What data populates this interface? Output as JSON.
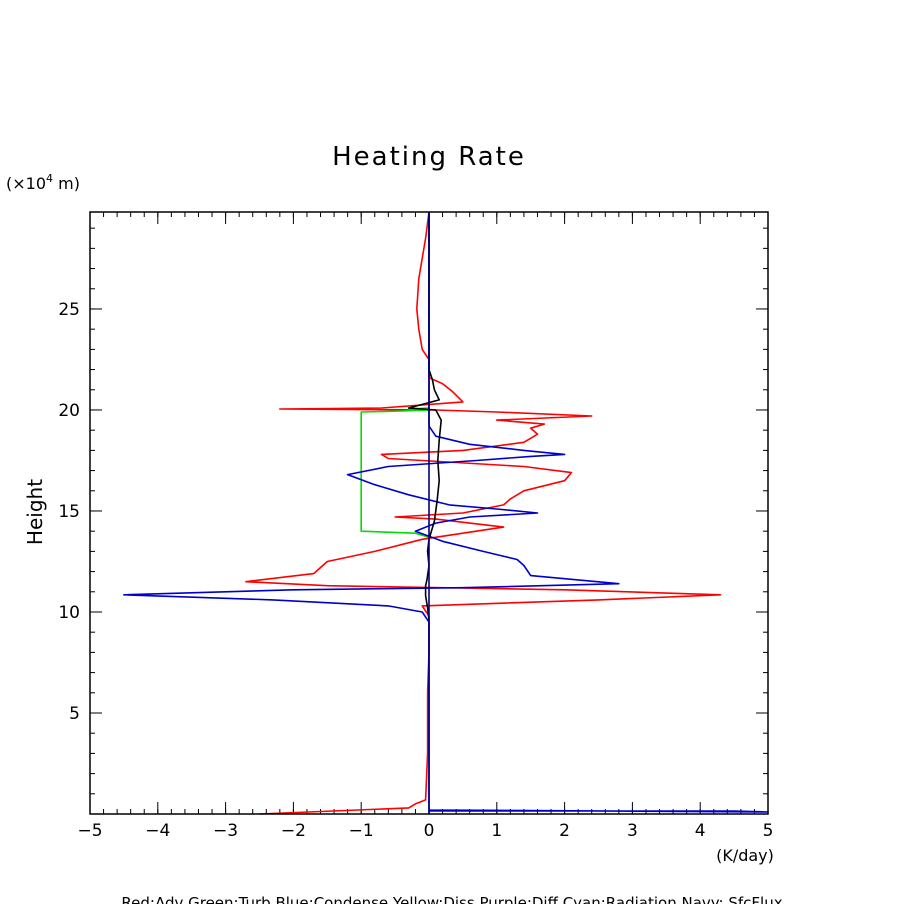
{
  "chart_data": {
    "type": "line",
    "title": "Heating Rate",
    "xlabel": "",
    "ylabel": "Height",
    "x_unit": "(K/day)",
    "y_unit_prefix": "(×10",
    "y_unit_exp": "4",
    "y_unit_suffix": " m)",
    "xlim": [
      -5,
      5
    ],
    "ylim": [
      0,
      29.8
    ],
    "x_ticks": [
      -5,
      -4,
      -3,
      -2,
      -1,
      0,
      1,
      2,
      3,
      4,
      5
    ],
    "y_ticks": [
      5,
      10,
      15,
      20,
      25
    ],
    "footer": "Red:Adv  Green:Turb  Blue:Condense  Yellow:Diss  Purple:Diff  Cyan:Radiation  Navy: SfcFlux",
    "series": [
      {
        "color": "#ff0000",
        "points": [
          [
            -2.5,
            0
          ],
          [
            -0.3,
            0.3
          ],
          [
            -0.2,
            0.5
          ],
          [
            -0.05,
            0.7
          ],
          [
            -0.02,
            3
          ],
          [
            -0.02,
            6
          ],
          [
            0,
            8
          ],
          [
            0,
            9.8
          ],
          [
            -0.1,
            10.3
          ],
          [
            2.5,
            10.6
          ],
          [
            4.3,
            10.85
          ],
          [
            2.0,
            11.1
          ],
          [
            -1.5,
            11.3
          ],
          [
            -2.7,
            11.5
          ],
          [
            -1.7,
            11.9
          ],
          [
            -1.5,
            12.5
          ],
          [
            -0.8,
            13.0
          ],
          [
            -0.1,
            13.6
          ],
          [
            0.5,
            13.9
          ],
          [
            1.1,
            14.2
          ],
          [
            0.1,
            14.6
          ],
          [
            -0.5,
            14.7
          ],
          [
            0.5,
            14.9
          ],
          [
            1.1,
            15.3
          ],
          [
            1.2,
            15.6
          ],
          [
            1.4,
            16.0
          ],
          [
            2.0,
            16.5
          ],
          [
            2.1,
            16.9
          ],
          [
            1.4,
            17.2
          ],
          [
            0.4,
            17.4
          ],
          [
            -0.6,
            17.6
          ],
          [
            -0.7,
            17.8
          ],
          [
            0.5,
            18.0
          ],
          [
            1.4,
            18.4
          ],
          [
            1.6,
            18.8
          ],
          [
            1.5,
            19.1
          ],
          [
            1.7,
            19.3
          ],
          [
            1.0,
            19.5
          ],
          [
            2.4,
            19.7
          ],
          [
            1.0,
            19.9
          ],
          [
            0.1,
            20.0
          ],
          [
            -2.2,
            20.05
          ],
          [
            -0.7,
            20.1
          ],
          [
            0.5,
            20.4
          ],
          [
            0.35,
            20.9
          ],
          [
            0.2,
            21.3
          ],
          [
            0.0,
            21.6
          ],
          [
            0,
            22.5
          ],
          [
            -0.1,
            23.0
          ],
          [
            -0.15,
            24
          ],
          [
            -0.18,
            25
          ],
          [
            -0.15,
            26.5
          ],
          [
            -0.1,
            27.5
          ],
          [
            -0.05,
            28.5
          ],
          [
            0,
            29.8
          ]
        ]
      },
      {
        "color": "#00dd00",
        "points": [
          [
            0,
            13.7
          ],
          [
            -0.2,
            13.9
          ],
          [
            -1.0,
            14.0
          ],
          [
            -1.0,
            17.0
          ],
          [
            -1.0,
            19.9
          ],
          [
            -0.4,
            19.95
          ],
          [
            0,
            20.0
          ],
          [
            -0.3,
            20.05
          ],
          [
            0,
            20.1
          ]
        ]
      },
      {
        "color": "#0000cc",
        "points": [
          [
            0,
            0
          ],
          [
            0,
            0.15
          ],
          [
            4.5,
            0.15
          ],
          [
            5,
            0.1
          ],
          [
            0,
            0.2
          ],
          [
            0,
            9.5
          ],
          [
            -0.1,
            10.0
          ],
          [
            -0.6,
            10.3
          ],
          [
            -2.3,
            10.6
          ],
          [
            -4.5,
            10.85
          ],
          [
            -2.0,
            11.1
          ],
          [
            0.5,
            11.2
          ],
          [
            2.8,
            11.4
          ],
          [
            1.5,
            11.8
          ],
          [
            1.4,
            12.3
          ],
          [
            1.3,
            12.6
          ],
          [
            0.8,
            13.0
          ],
          [
            0.2,
            13.5
          ],
          [
            -0.2,
            14.0
          ],
          [
            0.1,
            14.4
          ],
          [
            0.6,
            14.7
          ],
          [
            1.6,
            14.9
          ],
          [
            1.0,
            15.1
          ],
          [
            0.3,
            15.3
          ],
          [
            -0.3,
            15.8
          ],
          [
            -0.8,
            16.3
          ],
          [
            -1.2,
            16.8
          ],
          [
            -0.6,
            17.2
          ],
          [
            0.7,
            17.5
          ],
          [
            1.5,
            17.7
          ],
          [
            2.0,
            17.8
          ],
          [
            1.4,
            18.0
          ],
          [
            0.6,
            18.3
          ],
          [
            0.1,
            18.7
          ],
          [
            0,
            19.2
          ],
          [
            0,
            29.8
          ]
        ]
      },
      {
        "color": "#000000",
        "points": [
          [
            0,
            9.6
          ],
          [
            -0.02,
            10.2
          ],
          [
            -0.05,
            10.8
          ],
          [
            -0.05,
            11.3
          ],
          [
            -0.03,
            11.6
          ],
          [
            0,
            12.3
          ],
          [
            -0.02,
            13.0
          ],
          [
            0,
            13.6
          ],
          [
            0.08,
            14.5
          ],
          [
            0.12,
            15.5
          ],
          [
            0.15,
            16.5
          ],
          [
            0.13,
            17.5
          ],
          [
            0.15,
            18.5
          ],
          [
            0.18,
            19.5
          ],
          [
            0.1,
            20.0
          ],
          [
            -0.3,
            20.1
          ],
          [
            0.15,
            20.5
          ],
          [
            0.08,
            21.0
          ],
          [
            0.05,
            21.5
          ],
          [
            0,
            22.0
          ],
          [
            0,
            29.8
          ]
        ]
      },
      {
        "color": "#000080",
        "points": [
          [
            0,
            0
          ],
          [
            0,
            29.8
          ]
        ]
      }
    ]
  }
}
